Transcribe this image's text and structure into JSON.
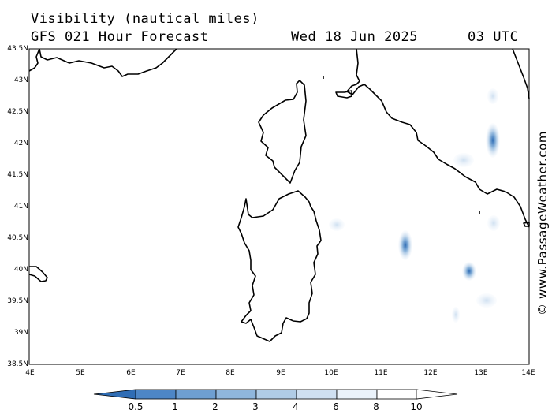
{
  "header": {
    "line1": "Visibility (nautical miles)",
    "line2": "GFS 021 Hour Forecast",
    "date": "Wed 18 Jun 2025",
    "time": "03 UTC"
  },
  "map": {
    "lat_labels": [
      "43.5N",
      "43N",
      "42.5N",
      "42N",
      "41.5N",
      "41N",
      "40.5N",
      "40N",
      "39.5N",
      "39N",
      "38.5N"
    ],
    "lon_labels": [
      "4E",
      "5E",
      "6E",
      "7E",
      "8E",
      "9E",
      "10E",
      "11E",
      "12E",
      "13E",
      "14E"
    ],
    "credit": "© www.PassageWeather.com"
  },
  "colorbar": {
    "labels": [
      "0.5",
      "1",
      "2",
      "3",
      "4",
      "6",
      "8",
      "10"
    ],
    "colors": [
      "#2f6db5",
      "#4d86c6",
      "#6e9fd2",
      "#8fb6dc",
      "#b0cce6",
      "#cfe0f1",
      "#eaf2fa",
      "#ffffff"
    ]
  }
}
